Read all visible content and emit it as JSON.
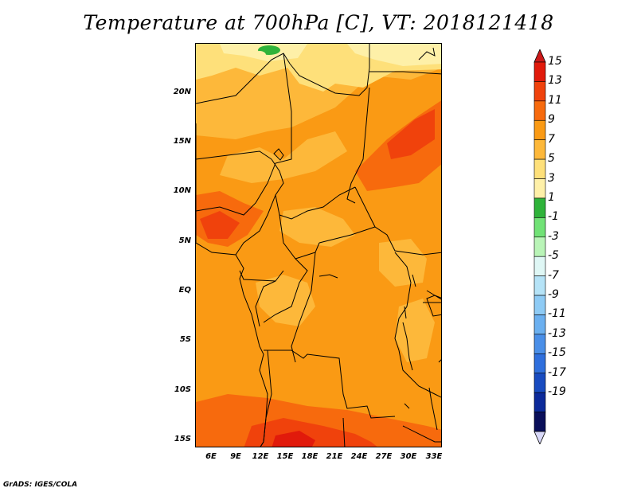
{
  "title": "Temperature at 700hPa [C], VT: 2018121418",
  "footer": "GrADS: IGES/COLA",
  "lat_labels": [
    "20N",
    "15N",
    "10N",
    "5N",
    "EQ",
    "5S",
    "10S",
    "15S"
  ],
  "lon_labels": [
    "6E",
    "9E",
    "12E",
    "15E",
    "18E",
    "21E",
    "24E",
    "27E",
    "30E",
    "33E"
  ],
  "colorbar_labels": [
    "15",
    "13",
    "11",
    "9",
    "7",
    "5",
    "3",
    "1",
    "-1",
    "-3",
    "-5",
    "-7",
    "-9",
    "-11",
    "-13",
    "-15",
    "-17",
    "-19"
  ],
  "colorbar_colors": [
    "#e11a0b",
    "#f0420c",
    "#f76a0d",
    "#fa9a14",
    "#fdb83a",
    "#fee07a",
    "#fef0a8",
    "#2fb33a",
    "#71e276",
    "#b9f4b7",
    "#dff7f5",
    "#b5e3f7",
    "#8ecbf5",
    "#6bb0f0",
    "#4a8fe8",
    "#2f6fdd",
    "#184bc0",
    "#0c2a9a",
    "#0a0f5a"
  ],
  "colorbar_top_arrow": "#cc1a1a",
  "colorbar_bottom_arrow": "#d8d8f8",
  "map": {
    "lat_range": [
      -16,
      25
    ],
    "lon_range": [
      4,
      34
    ],
    "base_color": "#fa9a14",
    "field_regions": [
      {
        "level": "5",
        "color": "#fee07a"
      },
      {
        "level": "7",
        "color": "#fdb83a"
      },
      {
        "level": "11",
        "color": "#f76a0d"
      },
      {
        "level": "13",
        "color": "#f0420c"
      },
      {
        "level": "15",
        "color": "#e11a0b"
      },
      {
        "level": "3",
        "color": "#fef0a8"
      },
      {
        "level": "1",
        "color": "#2fb33a"
      }
    ]
  }
}
